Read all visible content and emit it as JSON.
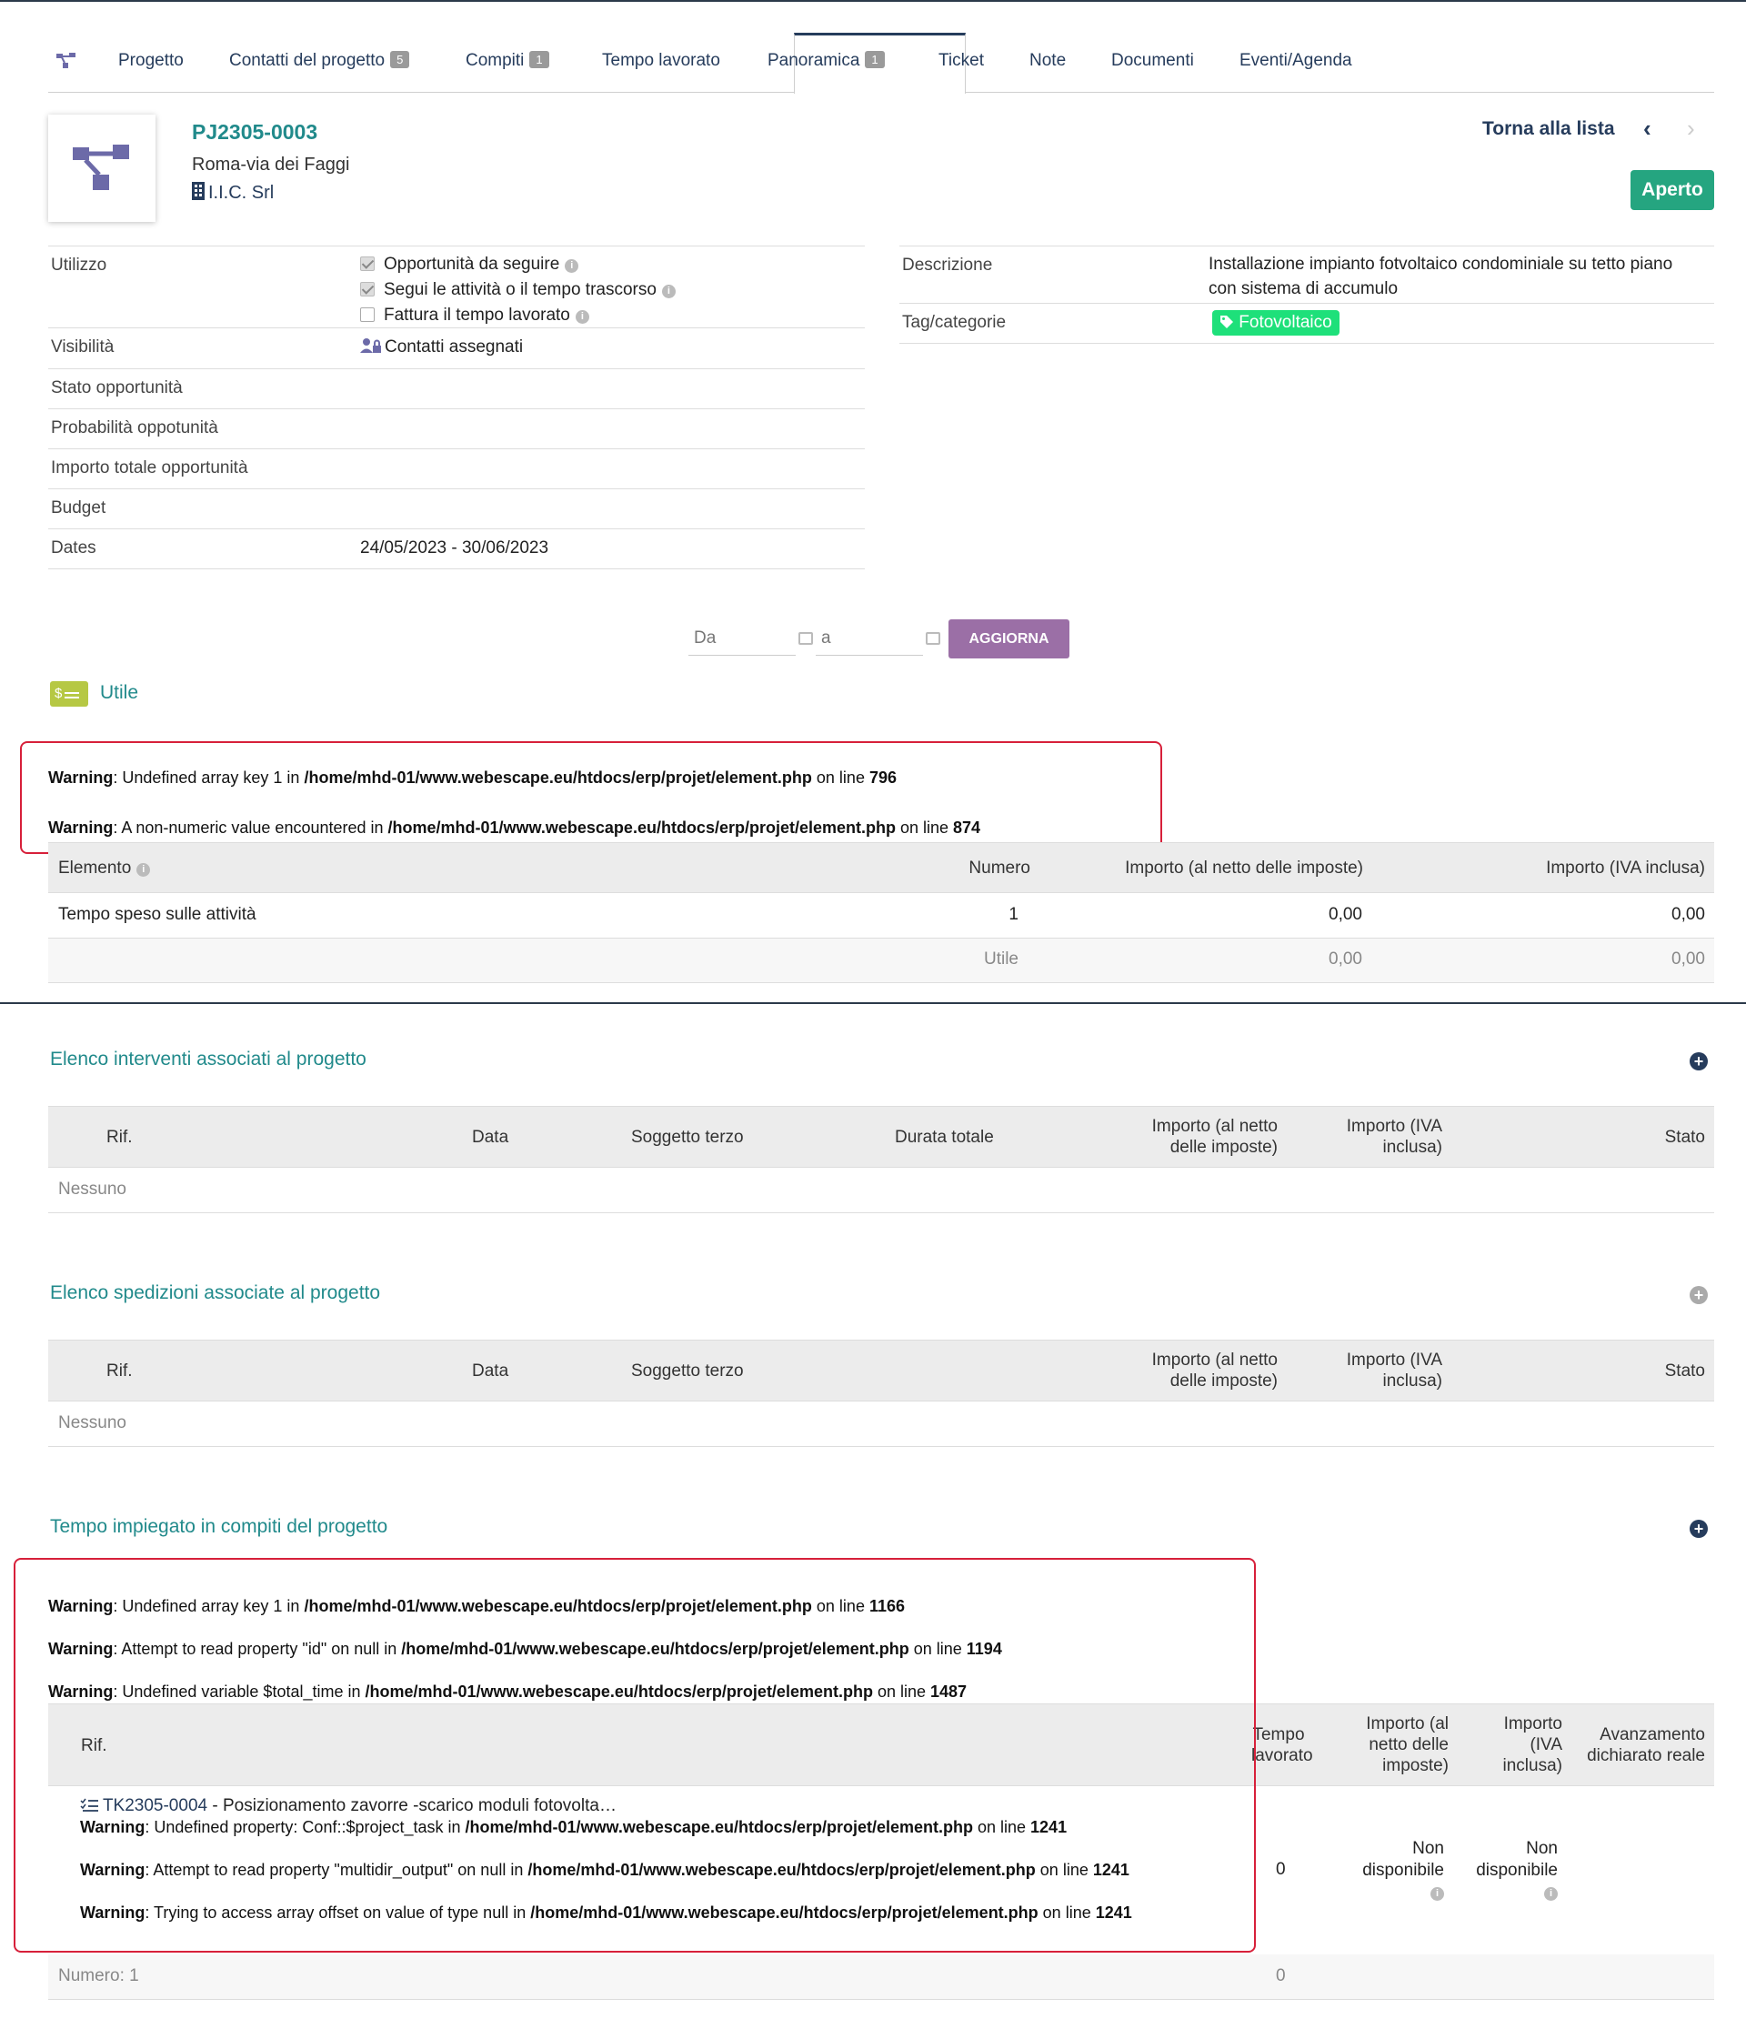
{
  "tabs": [
    {
      "label": "Progetto",
      "badge": ""
    },
    {
      "label": "Contatti del progetto",
      "badge": "5"
    },
    {
      "label": "Compiti",
      "badge": "1"
    },
    {
      "label": "Tempo lavorato",
      "badge": ""
    },
    {
      "label": "Panoramica",
      "badge": "1"
    },
    {
      "label": "Ticket",
      "badge": ""
    },
    {
      "label": "Note",
      "badge": ""
    },
    {
      "label": "Documenti",
      "badge": ""
    },
    {
      "label": "Eventi/Agenda",
      "badge": ""
    }
  ],
  "header": {
    "ref": "PJ2305-0003",
    "title": "Roma-via dei Faggi",
    "company": "I.I.C. Srl",
    "back_label": "Torna alla lista",
    "status": "Aperto"
  },
  "fields": {
    "utilizzo_label": "Utilizzo",
    "utilizzo_opts": [
      "Opportunità da seguire",
      "Segui le attività o il tempo trascorso",
      "Fattura il tempo lavorato"
    ],
    "visibilita_label": "Visibilità",
    "visibilita_value": "Contatti assegnati",
    "stato_label": "Stato opportunità",
    "prob_label": "Probabilità oppotunità",
    "importo_label": "Importo totale opportunità",
    "budget_label": "Budget",
    "dates_label": "Dates",
    "dates_value": "24/05/2023 - 30/06/2023",
    "descr_label": "Descrizione",
    "descr_value_1": "Installazione impianto fotvoltaico condominiale su tetto piano",
    "descr_value_2": "con sistema di accumulo",
    "tag_label": "Tag/categorie",
    "tag_value": "Fotovoltaico"
  },
  "filter": {
    "from_placeholder": "Da",
    "to_placeholder": "a",
    "button": "AGGIORNA"
  },
  "utile": {
    "icon_text": "$",
    "label": "Utile"
  },
  "warnings_top": [
    {
      "w": "Warning",
      "msg": ": Undefined array key 1 in ",
      "path": "/home/mhd-01/www.webescape.eu/htdocs/erp/projet/element.php",
      "on": " on line ",
      "line": "796"
    },
    {
      "w": "Warning",
      "msg": ": A non-numeric value encountered in ",
      "path": "/home/mhd-01/www.webescape.eu/htdocs/erp/projet/element.php",
      "on": " on line ",
      "line": "874"
    }
  ],
  "profit_table": {
    "headers": [
      "Elemento",
      "Numero",
      "Importo (al netto delle imposte)",
      "Importo (IVA inclusa)"
    ],
    "row": [
      "Tempo speso sulle attività",
      "1",
      "0,00",
      "0,00"
    ],
    "total": [
      "Utile",
      "0,00",
      "0,00"
    ]
  },
  "interventi": {
    "title": "Elenco interventi associati al progetto",
    "headers": [
      "Rif.",
      "Data",
      "Soggetto terzo",
      "Durata totale",
      "Importo (al netto",
      "delle imposte)",
      "Importo (IVA",
      "inclusa)",
      "Stato"
    ],
    "empty": "Nessuno"
  },
  "spedizioni": {
    "title": "Elenco spedizioni associate al progetto",
    "headers": [
      "Rif.",
      "Data",
      "Soggetto terzo",
      "Importo (al netto",
      "delle imposte)",
      "Importo (IVA",
      "inclusa)",
      "Stato"
    ],
    "empty": "Nessuno"
  },
  "tempo": {
    "title": "Tempo impiegato in compiti del progetto",
    "warnings": [
      {
        "w": "Warning",
        "msg": ": Undefined array key 1 in ",
        "path": "/home/mhd-01/www.webescape.eu/htdocs/erp/projet/element.php",
        "on": " on line ",
        "line": "1166"
      },
      {
        "w": "Warning",
        "msg": ": Attempt to read property \"id\" on null in ",
        "path": "/home/mhd-01/www.webescape.eu/htdocs/erp/projet/element.php",
        "on": " on line ",
        "line": "1194"
      },
      {
        "w": "Warning",
        "msg": ": Undefined variable $total_time in ",
        "path": "/home/mhd-01/www.webescape.eu/htdocs/erp/projet/element.php",
        "on": " on line ",
        "line": "1487"
      }
    ],
    "headers": {
      "rif": "Rif.",
      "tempo_1": "Tempo",
      "tempo_2": "lavorato",
      "netto_1": "Importo (al",
      "netto_2": "netto delle",
      "netto_3": "imposte)",
      "iva_1": "Importo",
      "iva_2": "(IVA",
      "iva_3": "inclusa)",
      "avz_1": "Avanzamento",
      "avz_2": "dichiarato reale"
    },
    "task_ref": "TK2305-0004",
    "task_label": " - Posizionamento zavorre -scarico moduli fotovolta…",
    "row_warnings": [
      {
        "w": "Warning",
        "msg": ": Undefined property: Conf::$project_task in ",
        "path": "/home/mhd-01/www.webescape.eu/htdocs/erp/projet/element.php",
        "on": " on line ",
        "line": "1241"
      },
      {
        "w": "Warning",
        "msg": ": Attempt to read property \"multidir_output\" on null in ",
        "path": "/home/mhd-01/www.webescape.eu/htdocs/erp/projet/element.php",
        "on": " on line ",
        "line": "1241"
      },
      {
        "w": "Warning",
        "msg": ": Trying to access array offset on value of type null in ",
        "path": "/home/mhd-01/www.webescape.eu/htdocs/erp/projet/element.php",
        "on": " on line ",
        "line": "1241"
      }
    ],
    "row_time": "0",
    "na_1": "Non",
    "na_2": "disponibile",
    "footer_label": "Numero: 1",
    "footer_time": "0"
  }
}
